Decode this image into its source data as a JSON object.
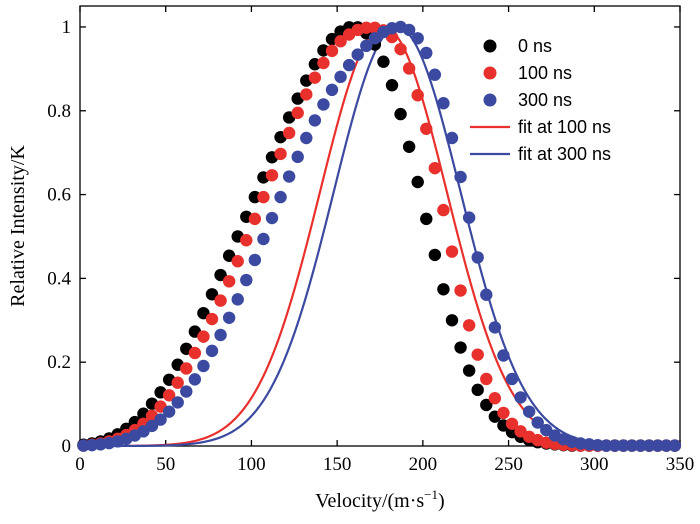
{
  "chart_data": {
    "type": "scatter",
    "xlabel": "Velocity/(m·s",
    "xlabel_sup": "−1",
    "xlabel_close": ")",
    "ylabel": "Relative Intensity/K",
    "xlim": [
      0,
      350
    ],
    "ylim": [
      0,
      1.05
    ],
    "xticks": [
      0,
      50,
      100,
      150,
      200,
      250,
      300,
      350
    ],
    "yticks": [
      0,
      0.2,
      0.4,
      0.6,
      0.8,
      1
    ],
    "ytick_labels": [
      "0",
      "0.2",
      "0.4",
      "0.6",
      "0.8",
      "1"
    ],
    "grid": false,
    "legend_position": "top-right",
    "series": [
      {
        "name": "0 ns",
        "kind": "points",
        "color": "#000000",
        "x": [
          2,
          7,
          12,
          17,
          22,
          27,
          32,
          37,
          42,
          47,
          52,
          57,
          62,
          67,
          72,
          77,
          82,
          87,
          92,
          97,
          102,
          107,
          112,
          117,
          122,
          127,
          132,
          137,
          142,
          147,
          152,
          157,
          162,
          167,
          172,
          177,
          182,
          187,
          192,
          197,
          202,
          207,
          212,
          217,
          222,
          227,
          232,
          237,
          242,
          247,
          252,
          257,
          262,
          267,
          272,
          277,
          282,
          287,
          292,
          297,
          302,
          307,
          312,
          317,
          322,
          327,
          332,
          337,
          342,
          347
        ],
        "y": [
          0.003,
          0.006,
          0.011,
          0.018,
          0.028,
          0.041,
          0.057,
          0.077,
          0.101,
          0.128,
          0.158,
          0.194,
          0.232,
          0.273,
          0.317,
          0.362,
          0.408,
          0.454,
          0.5,
          0.547,
          0.594,
          0.641,
          0.689,
          0.737,
          0.784,
          0.829,
          0.872,
          0.911,
          0.944,
          0.971,
          0.989,
          0.999,
          0.999,
          0.985,
          0.958,
          0.917,
          0.861,
          0.792,
          0.714,
          0.63,
          0.542,
          0.456,
          0.374,
          0.3,
          0.235,
          0.18,
          0.134,
          0.098,
          0.07,
          0.049,
          0.033,
          0.022,
          0.014,
          0.009,
          0.006,
          0.004,
          0.002,
          0.001,
          0.001,
          0.001,
          0.001,
          0.001,
          0.001,
          0.001,
          0.001,
          0.001,
          0.001,
          0.001,
          0.001,
          0.001
        ]
      },
      {
        "name": "100 ns",
        "kind": "points",
        "color": "#e8302d",
        "x": [
          2,
          7,
          12,
          17,
          22,
          27,
          32,
          37,
          42,
          47,
          52,
          57,
          62,
          67,
          72,
          77,
          82,
          87,
          92,
          97,
          102,
          107,
          112,
          117,
          122,
          127,
          132,
          137,
          142,
          147,
          152,
          157,
          162,
          167,
          172,
          177,
          182,
          187,
          192,
          197,
          202,
          207,
          212,
          217,
          222,
          227,
          232,
          237,
          242,
          247,
          252,
          257,
          262,
          267,
          272,
          277,
          282,
          287,
          292,
          297,
          302,
          307,
          312,
          317,
          322,
          327,
          332,
          337,
          342,
          347
        ],
        "y": [
          0.001,
          0.003,
          0.006,
          0.011,
          0.017,
          0.026,
          0.038,
          0.053,
          0.072,
          0.094,
          0.121,
          0.151,
          0.185,
          0.222,
          0.261,
          0.303,
          0.347,
          0.393,
          0.441,
          0.491,
          0.542,
          0.594,
          0.646,
          0.697,
          0.747,
          0.795,
          0.839,
          0.879,
          0.914,
          0.943,
          0.966,
          0.982,
          0.993,
          0.998,
          0.998,
          0.992,
          0.976,
          0.947,
          0.901,
          0.837,
          0.757,
          0.663,
          0.563,
          0.464,
          0.371,
          0.288,
          0.218,
          0.16,
          0.114,
          0.079,
          0.053,
          0.035,
          0.022,
          0.014,
          0.008,
          0.005,
          0.003,
          0.002,
          0.001,
          0.001,
          0.001,
          0.001,
          0.001,
          0.001,
          0.001,
          0.001,
          0.001,
          0.001,
          0.001,
          0.001
        ]
      },
      {
        "name": "300 ns",
        "kind": "points",
        "color": "#3b4aa0",
        "x": [
          2,
          7,
          12,
          17,
          22,
          27,
          32,
          37,
          42,
          47,
          52,
          57,
          62,
          67,
          72,
          77,
          82,
          87,
          92,
          97,
          102,
          107,
          112,
          117,
          122,
          127,
          132,
          137,
          142,
          147,
          152,
          157,
          162,
          167,
          172,
          177,
          182,
          187,
          192,
          197,
          202,
          207,
          212,
          217,
          222,
          227,
          232,
          237,
          242,
          247,
          252,
          257,
          262,
          267,
          272,
          277,
          282,
          287,
          292,
          297,
          302,
          307,
          312,
          317,
          322,
          327,
          332,
          337,
          342,
          347
        ],
        "y": [
          0.001,
          0.002,
          0.004,
          0.007,
          0.011,
          0.017,
          0.025,
          0.035,
          0.048,
          0.063,
          0.082,
          0.104,
          0.13,
          0.159,
          0.191,
          0.227,
          0.265,
          0.306,
          0.35,
          0.396,
          0.444,
          0.494,
          0.544,
          0.594,
          0.643,
          0.69,
          0.735,
          0.777,
          0.815,
          0.85,
          0.881,
          0.909,
          0.934,
          0.955,
          0.973,
          0.988,
          0.997,
          1.0,
          0.993,
          0.973,
          0.938,
          0.886,
          0.818,
          0.735,
          0.642,
          0.545,
          0.45,
          0.361,
          0.283,
          0.216,
          0.16,
          0.116,
          0.082,
          0.056,
          0.038,
          0.025,
          0.016,
          0.01,
          0.006,
          0.004,
          0.002,
          0.001,
          0.001,
          0.001,
          0.001,
          0.001,
          0.001,
          0.001,
          0.001,
          0.001
        ]
      },
      {
        "name": "fit at 100 ns",
        "kind": "line",
        "color": "#e8302d",
        "mean": 177,
        "sigma": 37
      },
      {
        "name": "fit at 300 ns",
        "kind": "line",
        "color": "#3b4aa0",
        "mean": 185,
        "sigma": 37
      }
    ]
  }
}
